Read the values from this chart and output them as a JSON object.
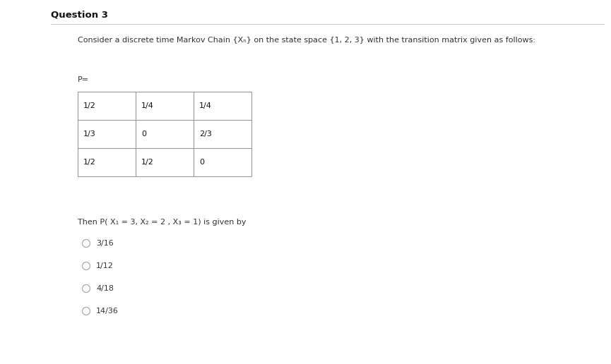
{
  "title": "Question 3",
  "background_color": "#f5f5f5",
  "content_bg": "#ffffff",
  "intro_text": "Consider a discrete time Markov Chain {Xₙ} on the state space {1, 2, 3} with the transition matrix given as follows:",
  "P_label": "P=",
  "matrix": [
    [
      "1/2",
      "1/4",
      "1/4"
    ],
    [
      "1/3",
      "0",
      "2/3"
    ],
    [
      "1/2",
      "1/2",
      "0"
    ]
  ],
  "question_text": "Then P( X₁ = 3, X₂ = 2 , X₃ = 1) is given by",
  "options": [
    "3/16",
    "1/12",
    "4/18",
    "14/36"
  ],
  "title_fontsize": 9.5,
  "body_fontsize": 8.0,
  "option_fontsize": 8.0
}
